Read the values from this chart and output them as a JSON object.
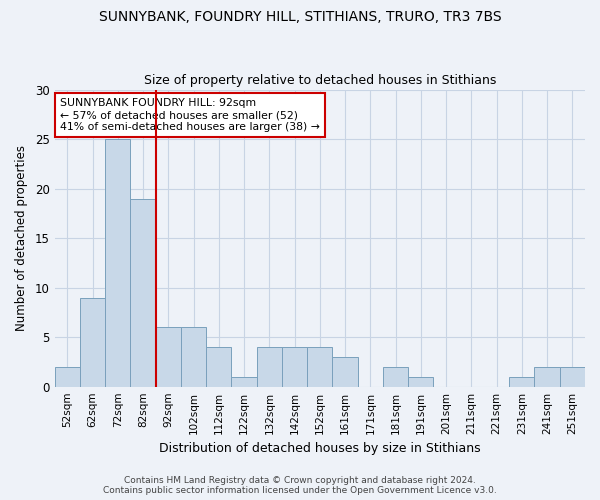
{
  "title1": "SUNNYBANK, FOUNDRY HILL, STITHIANS, TRURO, TR3 7BS",
  "title2": "Size of property relative to detached houses in Stithians",
  "xlabel": "Distribution of detached houses by size in Stithians",
  "ylabel": "Number of detached properties",
  "categories": [
    "52sqm",
    "62sqm",
    "72sqm",
    "82sqm",
    "92sqm",
    "102sqm",
    "112sqm",
    "122sqm",
    "132sqm",
    "142sqm",
    "152sqm",
    "161sqm",
    "171sqm",
    "181sqm",
    "191sqm",
    "201sqm",
    "211sqm",
    "221sqm",
    "231sqm",
    "241sqm",
    "251sqm"
  ],
  "values": [
    2,
    9,
    25,
    19,
    6,
    6,
    4,
    1,
    4,
    4,
    4,
    3,
    0,
    2,
    1,
    0,
    0,
    0,
    1,
    2,
    2
  ],
  "bar_color": "#c8d8e8",
  "bar_edge_color": "#7aa0bc",
  "highlight_line_color": "#cc0000",
  "annotation_text": "SUNNYBANK FOUNDRY HILL: 92sqm\n← 57% of detached houses are smaller (52)\n41% of semi-detached houses are larger (38) →",
  "annotation_box_color": "#ffffff",
  "annotation_box_edge_color": "#cc0000",
  "ylim": [
    0,
    30
  ],
  "yticks": [
    0,
    5,
    10,
    15,
    20,
    25,
    30
  ],
  "grid_color": "#c8d4e4",
  "background_color": "#eef2f8",
  "footer_text": "Contains HM Land Registry data © Crown copyright and database right 2024.\nContains public sector information licensed under the Open Government Licence v3.0."
}
